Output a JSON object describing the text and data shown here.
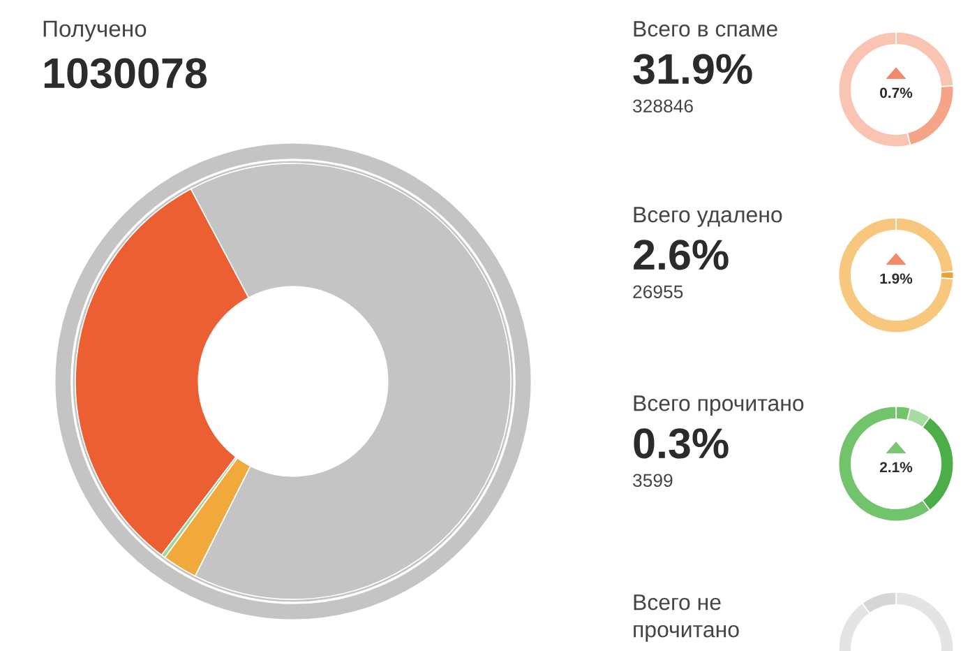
{
  "chart_data": [
    {
      "type": "donut",
      "title": "Получено",
      "subtitle": "1030078",
      "categories": [
        null,
        null,
        null,
        null
      ],
      "values": [
        31.9,
        0.3,
        2.6,
        65.2
      ],
      "colors": [
        "#ec5f33",
        "#9ad79a",
        "#f2a93b",
        "#c4c4c4"
      ]
    },
    {
      "type": "donut",
      "title": "Всего в спаме",
      "subtitle": "31.9%",
      "annotations": [
        "328846",
        "0.7%"
      ],
      "categories": [
        null,
        null,
        null
      ],
      "values": [
        24,
        22,
        54
      ],
      "colors": [
        "#f9c4b1",
        "#f5a487",
        "#f9c4b1"
      ]
    },
    {
      "type": "donut",
      "title": "Всего удалено",
      "subtitle": "2.6%",
      "annotations": [
        "26955",
        "1.9%"
      ],
      "categories": [
        null,
        null,
        null
      ],
      "values": [
        24,
        2,
        74
      ],
      "colors": [
        "#f7c77d",
        "#e8a23a",
        "#f7c77d"
      ]
    },
    {
      "type": "donut",
      "title": "Всего прочитано",
      "subtitle": "0.3%",
      "annotations": [
        "3599",
        "2.1%"
      ],
      "categories": [
        null,
        null,
        null,
        null
      ],
      "values": [
        4,
        6,
        30,
        60
      ],
      "colors": [
        "#72c46c",
        "#a7dca3",
        "#4cae47",
        "#72c46c"
      ]
    },
    {
      "type": "donut",
      "title": "Всего не\nпрочитано",
      "categories": [
        null,
        null
      ],
      "values": [
        90,
        10
      ],
      "colors": [
        "#e4e4e4",
        "#d6d6d6"
      ]
    }
  ]
}
